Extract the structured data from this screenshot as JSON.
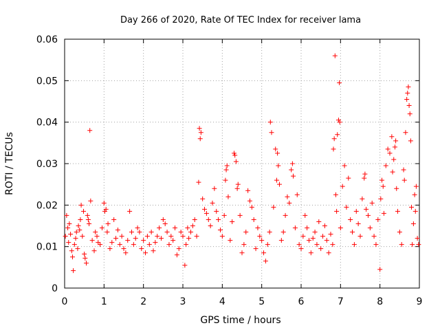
{
  "chart_data": {
    "type": "scatter",
    "title": "Day 266 of 2020, Rate Of TEC Index for receiver lama",
    "xlabel": "GPS time / hours",
    "ylabel": "ROTI / TECUs",
    "xlim": [
      0,
      9
    ],
    "ylim": [
      0,
      0.06
    ],
    "x_ticks": [
      0,
      1,
      2,
      3,
      4,
      5,
      6,
      7,
      8,
      9
    ],
    "x_tick_labels": [
      "0",
      "1",
      "2",
      "3",
      "4",
      "5",
      "6",
      "7",
      "8",
      "9"
    ],
    "y_ticks": [
      0,
      0.01,
      0.02,
      0.03,
      0.04,
      0.05,
      0.06
    ],
    "y_tick_labels": [
      "0",
      "0.01",
      "0.02",
      "0.03",
      "0.04",
      "0.05",
      "0.06"
    ],
    "grid": true,
    "marker": "plus",
    "color": "#ff0000",
    "series": [
      {
        "name": "ROTI",
        "points": [
          [
            0.02,
            0.0125
          ],
          [
            0.05,
            0.0175
          ],
          [
            0.08,
            0.0145
          ],
          [
            0.1,
            0.011
          ],
          [
            0.12,
            0.0155
          ],
          [
            0.15,
            0.013
          ],
          [
            0.18,
            0.009
          ],
          [
            0.2,
            0.0075
          ],
          [
            0.22,
            0.0042
          ],
          [
            0.25,
            0.0105
          ],
          [
            0.28,
            0.012
          ],
          [
            0.3,
            0.0135
          ],
          [
            0.33,
            0.0095
          ],
          [
            0.35,
            0.015
          ],
          [
            0.38,
            0.014
          ],
          [
            0.4,
            0.0165
          ],
          [
            0.42,
            0.02
          ],
          [
            0.45,
            0.0125
          ],
          [
            0.48,
            0.0185
          ],
          [
            0.5,
            0.0082
          ],
          [
            0.52,
            0.0072
          ],
          [
            0.55,
            0.006
          ],
          [
            0.58,
            0.0175
          ],
          [
            0.6,
            0.0165
          ],
          [
            0.62,
            0.0155
          ],
          [
            0.64,
            0.038
          ],
          [
            0.66,
            0.021
          ],
          [
            0.7,
            0.0115
          ],
          [
            0.75,
            0.009
          ],
          [
            0.78,
            0.0135
          ],
          [
            0.82,
            0.0125
          ],
          [
            0.85,
            0.011
          ],
          [
            0.9,
            0.0105
          ],
          [
            0.95,
            0.0145
          ],
          [
            1.0,
            0.0205
          ],
          [
            1.02,
            0.0185
          ],
          [
            1.05,
            0.019
          ],
          [
            1.08,
            0.0135
          ],
          [
            1.1,
            0.0155
          ],
          [
            1.15,
            0.0095
          ],
          [
            1.2,
            0.011
          ],
          [
            1.25,
            0.0165
          ],
          [
            1.3,
            0.012
          ],
          [
            1.35,
            0.014
          ],
          [
            1.4,
            0.0105
          ],
          [
            1.45,
            0.0125
          ],
          [
            1.5,
            0.0095
          ],
          [
            1.55,
            0.0085
          ],
          [
            1.6,
            0.0115
          ],
          [
            1.65,
            0.0185
          ],
          [
            1.7,
            0.0135
          ],
          [
            1.75,
            0.0105
          ],
          [
            1.8,
            0.012
          ],
          [
            1.85,
            0.0145
          ],
          [
            1.9,
            0.0135
          ],
          [
            1.95,
            0.0095
          ],
          [
            2.0,
            0.0115
          ],
          [
            2.05,
            0.0085
          ],
          [
            2.1,
            0.0125
          ],
          [
            2.15,
            0.0105
          ],
          [
            2.2,
            0.0135
          ],
          [
            2.25,
            0.009
          ],
          [
            2.3,
            0.011
          ],
          [
            2.35,
            0.0125
          ],
          [
            2.4,
            0.0145
          ],
          [
            2.45,
            0.012
          ],
          [
            2.5,
            0.0165
          ],
          [
            2.55,
            0.0155
          ],
          [
            2.6,
            0.0135
          ],
          [
            2.65,
            0.0105
          ],
          [
            2.7,
            0.0125
          ],
          [
            2.75,
            0.0115
          ],
          [
            2.8,
            0.0145
          ],
          [
            2.85,
            0.008
          ],
          [
            2.9,
            0.0095
          ],
          [
            2.95,
            0.0135
          ],
          [
            3.0,
            0.0125
          ],
          [
            3.05,
            0.0055
          ],
          [
            3.08,
            0.0105
          ],
          [
            3.12,
            0.0145
          ],
          [
            3.15,
            0.012
          ],
          [
            3.2,
            0.0135
          ],
          [
            3.25,
            0.015
          ],
          [
            3.3,
            0.0165
          ],
          [
            3.35,
            0.0125
          ],
          [
            3.4,
            0.0255
          ],
          [
            3.42,
            0.0385
          ],
          [
            3.44,
            0.036
          ],
          [
            3.46,
            0.0375
          ],
          [
            3.5,
            0.0215
          ],
          [
            3.55,
            0.019
          ],
          [
            3.6,
            0.018
          ],
          [
            3.65,
            0.0165
          ],
          [
            3.7,
            0.015
          ],
          [
            3.75,
            0.0205
          ],
          [
            3.8,
            0.024
          ],
          [
            3.85,
            0.0185
          ],
          [
            3.9,
            0.0165
          ],
          [
            3.95,
            0.014
          ],
          [
            4.0,
            0.0125
          ],
          [
            4.05,
            0.0175
          ],
          [
            4.08,
            0.026
          ],
          [
            4.1,
            0.0285
          ],
          [
            4.12,
            0.0295
          ],
          [
            4.15,
            0.022
          ],
          [
            4.2,
            0.0115
          ],
          [
            4.25,
            0.016
          ],
          [
            4.3,
            0.0325
          ],
          [
            4.32,
            0.032
          ],
          [
            4.35,
            0.0305
          ],
          [
            4.38,
            0.024
          ],
          [
            4.4,
            0.025
          ],
          [
            4.45,
            0.0175
          ],
          [
            4.5,
            0.0085
          ],
          [
            4.55,
            0.0105
          ],
          [
            4.6,
            0.0135
          ],
          [
            4.65,
            0.0235
          ],
          [
            4.7,
            0.021
          ],
          [
            4.75,
            0.0195
          ],
          [
            4.8,
            0.0165
          ],
          [
            4.85,
            0.0095
          ],
          [
            4.9,
            0.0145
          ],
          [
            4.95,
            0.0125
          ],
          [
            5.0,
            0.0115
          ],
          [
            5.05,
            0.0085
          ],
          [
            5.1,
            0.0065
          ],
          [
            5.15,
            0.0105
          ],
          [
            5.2,
            0.0135
          ],
          [
            5.22,
            0.04
          ],
          [
            5.25,
            0.0375
          ],
          [
            5.3,
            0.0195
          ],
          [
            5.35,
            0.0335
          ],
          [
            5.38,
            0.026
          ],
          [
            5.4,
            0.0325
          ],
          [
            5.42,
            0.0295
          ],
          [
            5.45,
            0.025
          ],
          [
            5.5,
            0.0115
          ],
          [
            5.55,
            0.0135
          ],
          [
            5.6,
            0.0175
          ],
          [
            5.65,
            0.022
          ],
          [
            5.7,
            0.0205
          ],
          [
            5.75,
            0.0285
          ],
          [
            5.78,
            0.03
          ],
          [
            5.8,
            0.027
          ],
          [
            5.85,
            0.0145
          ],
          [
            5.9,
            0.0225
          ],
          [
            5.95,
            0.0105
          ],
          [
            6.0,
            0.0095
          ],
          [
            6.05,
            0.0125
          ],
          [
            6.1,
            0.0175
          ],
          [
            6.15,
            0.0145
          ],
          [
            6.2,
            0.0115
          ],
          [
            6.25,
            0.0085
          ],
          [
            6.3,
            0.012
          ],
          [
            6.35,
            0.0135
          ],
          [
            6.4,
            0.0105
          ],
          [
            6.45,
            0.016
          ],
          [
            6.5,
            0.0095
          ],
          [
            6.55,
            0.0125
          ],
          [
            6.6,
            0.015
          ],
          [
            6.65,
            0.0115
          ],
          [
            6.7,
            0.0085
          ],
          [
            6.75,
            0.013
          ],
          [
            6.8,
            0.0105
          ],
          [
            6.82,
            0.0335
          ],
          [
            6.84,
            0.036
          ],
          [
            6.86,
            0.056
          ],
          [
            6.88,
            0.0225
          ],
          [
            6.9,
            0.0185
          ],
          [
            6.92,
            0.037
          ],
          [
            6.95,
            0.0405
          ],
          [
            6.97,
            0.0495
          ],
          [
            6.98,
            0.04
          ],
          [
            7.0,
            0.0145
          ],
          [
            7.05,
            0.0245
          ],
          [
            7.1,
            0.0295
          ],
          [
            7.15,
            0.0195
          ],
          [
            7.2,
            0.0265
          ],
          [
            7.25,
            0.0165
          ],
          [
            7.3,
            0.0135
          ],
          [
            7.35,
            0.0105
          ],
          [
            7.4,
            0.0185
          ],
          [
            7.45,
            0.0155
          ],
          [
            7.5,
            0.0125
          ],
          [
            7.55,
            0.0215
          ],
          [
            7.6,
            0.0265
          ],
          [
            7.62,
            0.0275
          ],
          [
            7.65,
            0.019
          ],
          [
            7.7,
            0.0175
          ],
          [
            7.75,
            0.0145
          ],
          [
            7.8,
            0.0205
          ],
          [
            7.85,
            0.0125
          ],
          [
            7.9,
            0.0105
          ],
          [
            7.95,
            0.0165
          ],
          [
            8.0,
            0.0045
          ],
          [
            8.02,
            0.0215
          ],
          [
            8.05,
            0.026
          ],
          [
            8.08,
            0.0245
          ],
          [
            8.1,
            0.018
          ],
          [
            8.15,
            0.0295
          ],
          [
            8.2,
            0.0335
          ],
          [
            8.25,
            0.0325
          ],
          [
            8.3,
            0.0365
          ],
          [
            8.32,
            0.028
          ],
          [
            8.35,
            0.031
          ],
          [
            8.38,
            0.034
          ],
          [
            8.4,
            0.0355
          ],
          [
            8.42,
            0.024
          ],
          [
            8.45,
            0.0185
          ],
          [
            8.5,
            0.0135
          ],
          [
            8.55,
            0.0105
          ],
          [
            8.6,
            0.0285
          ],
          [
            8.62,
            0.026
          ],
          [
            8.65,
            0.0375
          ],
          [
            8.68,
            0.0455
          ],
          [
            8.7,
            0.047
          ],
          [
            8.72,
            0.0485
          ],
          [
            8.74,
            0.044
          ],
          [
            8.76,
            0.042
          ],
          [
            8.78,
            0.0355
          ],
          [
            8.8,
            0.0195
          ],
          [
            8.82,
            0.0105
          ],
          [
            8.85,
            0.0155
          ],
          [
            8.88,
            0.0225
          ],
          [
            8.9,
            0.0185
          ],
          [
            8.92,
            0.0245
          ],
          [
            8.95,
            0.012
          ],
          [
            8.98,
            0.0105
          ]
        ]
      }
    ]
  }
}
